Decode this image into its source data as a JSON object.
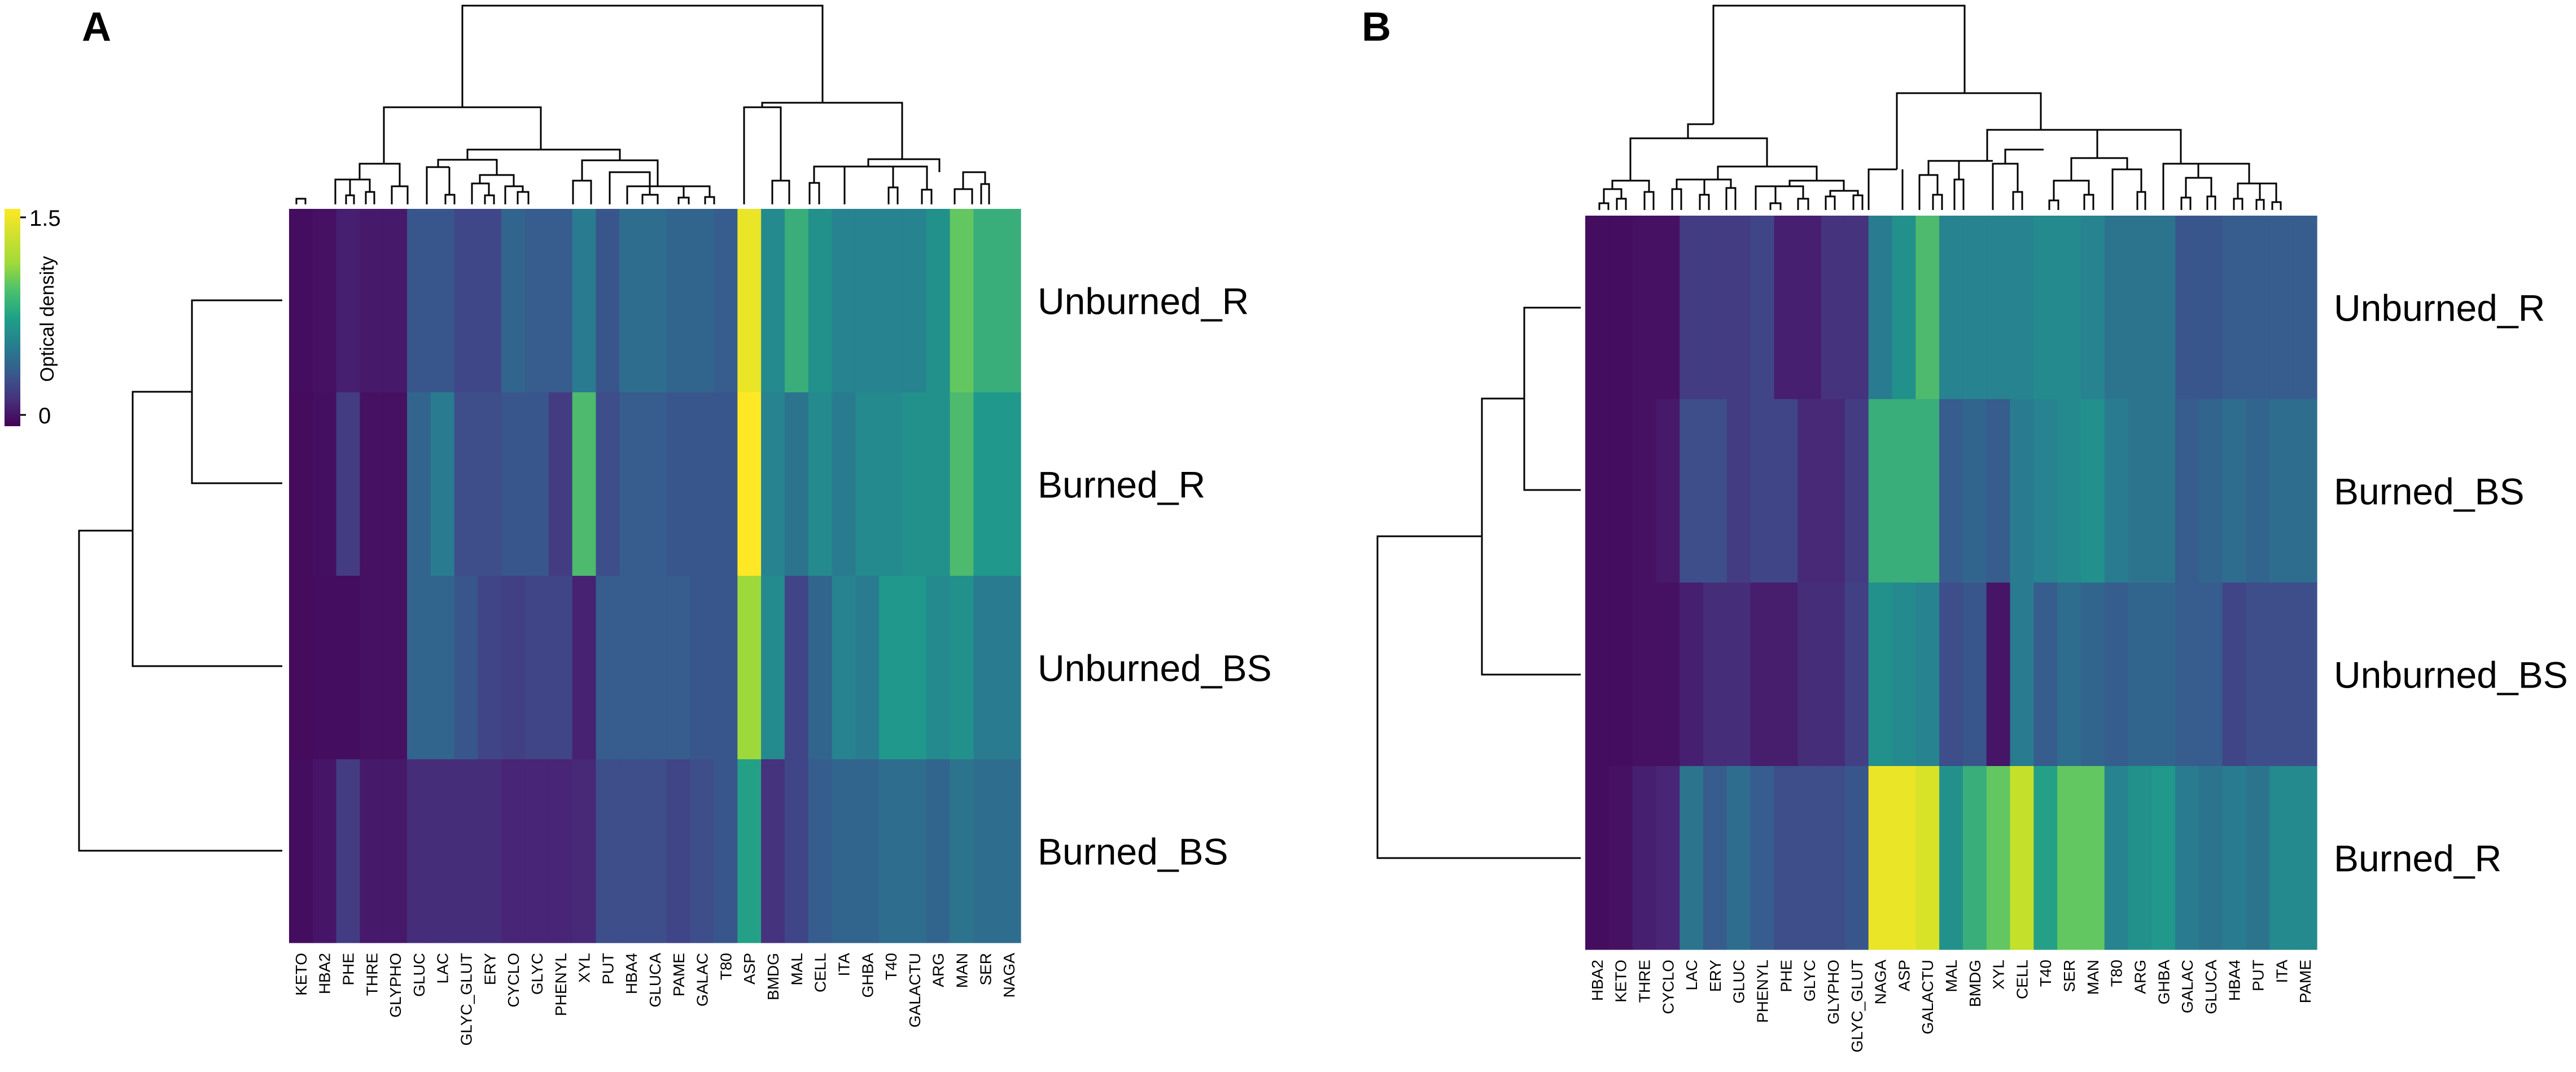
{
  "chart_data": [
    {
      "type": "heatmap",
      "panel_label": "A",
      "legend": {
        "title": "Optical density",
        "min_label": "0",
        "max_label": "1.5",
        "vmin": 0,
        "vmax": 1.5
      },
      "columns": [
        "KETO",
        "HBA2",
        "PHE",
        "THRE",
        "GLYPHO",
        "GLUC",
        "LAC",
        "GLYC_GLUT",
        "ERY",
        "CYCLO",
        "GLYC",
        "PHENYL",
        "XYL",
        "PUT",
        "HBA4",
        "GLUCA",
        "PAME",
        "GALAC",
        "T80",
        "ASP",
        "BMDG",
        "MAL",
        "CELL",
        "ITA",
        "GHBA",
        "T40",
        "GALACTU",
        "ARG",
        "MAN",
        "SER",
        "NAGA"
      ],
      "rows": [
        "Unburned_R",
        "Burned_R",
        "Unburned_BS",
        "Burned_BS"
      ],
      "values": [
        [
          0.06,
          0.08,
          0.15,
          0.12,
          0.12,
          0.45,
          0.45,
          0.36,
          0.36,
          0.55,
          0.5,
          0.5,
          0.7,
          0.45,
          0.6,
          0.6,
          0.55,
          0.55,
          0.5,
          1.45,
          0.8,
          1.0,
          0.85,
          0.75,
          0.75,
          0.75,
          0.75,
          0.85,
          1.1,
          1.0,
          1.0
        ],
        [
          0.05,
          0.07,
          0.3,
          0.08,
          0.08,
          0.55,
          0.7,
          0.4,
          0.4,
          0.45,
          0.45,
          0.3,
          1.05,
          0.4,
          0.5,
          0.5,
          0.45,
          0.45,
          0.45,
          1.5,
          0.75,
          0.65,
          0.8,
          0.7,
          0.8,
          0.8,
          0.85,
          0.85,
          1.05,
          0.9,
          0.9
        ],
        [
          0.05,
          0.06,
          0.06,
          0.08,
          0.08,
          0.55,
          0.55,
          0.45,
          0.35,
          0.32,
          0.35,
          0.35,
          0.16,
          0.5,
          0.5,
          0.5,
          0.5,
          0.45,
          0.45,
          1.25,
          0.8,
          0.35,
          0.55,
          0.75,
          0.7,
          0.9,
          0.9,
          0.8,
          0.85,
          0.7,
          0.7
        ],
        [
          0.06,
          0.1,
          0.3,
          0.12,
          0.12,
          0.22,
          0.22,
          0.22,
          0.22,
          0.18,
          0.18,
          0.18,
          0.2,
          0.4,
          0.4,
          0.4,
          0.35,
          0.4,
          0.45,
          0.95,
          0.25,
          0.35,
          0.5,
          0.55,
          0.55,
          0.6,
          0.6,
          0.55,
          0.65,
          0.6,
          0.6
        ]
      ],
      "colormap": "viridis"
    },
    {
      "type": "heatmap",
      "panel_label": "B",
      "columns": [
        "HBA2",
        "KETO",
        "THRE",
        "CYCLO",
        "LAC",
        "ERY",
        "GLUC",
        "PHENYL",
        "PHE",
        "GLYC",
        "GLYPHO",
        "GLYC_GLUT",
        "NAGA",
        "ASP",
        "GALACTU",
        "MAL",
        "BMDG",
        "XYL",
        "CELL",
        "T40",
        "SER",
        "MAN",
        "T80",
        "ARG",
        "GHBA",
        "GALAC",
        "GLUCA",
        "HBA4",
        "PUT",
        "ITA",
        "PAME"
      ],
      "rows": [
        "Unburned_R",
        "Burned_BS",
        "Unburned_BS",
        "Burned_R"
      ],
      "values": [
        [
          0.06,
          0.06,
          0.08,
          0.08,
          0.3,
          0.3,
          0.3,
          0.35,
          0.15,
          0.15,
          0.25,
          0.25,
          0.7,
          0.85,
          1.05,
          0.75,
          0.75,
          0.75,
          0.75,
          0.8,
          0.8,
          0.75,
          0.65,
          0.65,
          0.65,
          0.45,
          0.45,
          0.5,
          0.5,
          0.5,
          0.5
        ],
        [
          0.06,
          0.06,
          0.08,
          0.12,
          0.4,
          0.4,
          0.3,
          0.35,
          0.35,
          0.2,
          0.2,
          0.3,
          1.0,
          1.0,
          1.0,
          0.5,
          0.55,
          0.5,
          0.7,
          0.75,
          0.8,
          0.85,
          0.7,
          0.65,
          0.65,
          0.5,
          0.55,
          0.6,
          0.55,
          0.6,
          0.6
        ],
        [
          0.06,
          0.06,
          0.08,
          0.08,
          0.15,
          0.22,
          0.22,
          0.14,
          0.14,
          0.22,
          0.22,
          0.32,
          0.85,
          0.8,
          0.75,
          0.4,
          0.45,
          0.1,
          0.7,
          0.5,
          0.6,
          0.55,
          0.5,
          0.55,
          0.55,
          0.5,
          0.5,
          0.35,
          0.4,
          0.4,
          0.4
        ],
        [
          0.06,
          0.08,
          0.15,
          0.18,
          0.65,
          0.5,
          0.6,
          0.5,
          0.4,
          0.4,
          0.4,
          0.45,
          1.45,
          1.45,
          1.4,
          0.85,
          1.0,
          1.1,
          1.35,
          0.95,
          1.1,
          1.1,
          0.75,
          0.85,
          0.9,
          0.7,
          0.65,
          0.7,
          0.65,
          0.8,
          0.8
        ]
      ],
      "colormap": "viridis"
    }
  ]
}
